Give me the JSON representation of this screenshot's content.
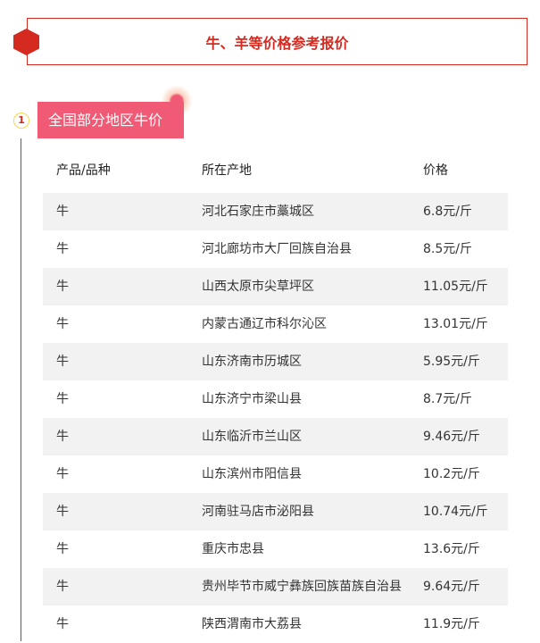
{
  "title": "牛、羊等价格参考报价",
  "section": {
    "number": "1",
    "label": "全国部分地区牛价"
  },
  "table": {
    "headers": [
      "产品/品种",
      "所在产地",
      "价格"
    ],
    "rows": [
      [
        "牛",
        "河北石家庄市藁城区",
        "6.8元/斤"
      ],
      [
        "牛",
        "河北廊坊市大厂回族自治县",
        "8.5元/斤"
      ],
      [
        "牛",
        "山西太原市尖草坪区",
        "11.05元/斤"
      ],
      [
        "牛",
        "内蒙古通辽市科尔沁区",
        "13.01元/斤"
      ],
      [
        "牛",
        "山东济南市历城区",
        "5.95元/斤"
      ],
      [
        "牛",
        "山东济宁市梁山县",
        "8.7元/斤"
      ],
      [
        "牛",
        "山东临沂市兰山区",
        "9.46元/斤"
      ],
      [
        "牛",
        "山东滨州市阳信县",
        "10.2元/斤"
      ],
      [
        "牛",
        "河南驻马店市泌阳县",
        "10.74元/斤"
      ],
      [
        "牛",
        "重庆市忠县",
        "13.6元/斤"
      ],
      [
        "牛",
        "贵州毕节市威宁彝族回族苗族自治县",
        "9.64元/斤"
      ],
      [
        "牛",
        "陕西渭南市大荔县",
        "11.9元/斤"
      ]
    ]
  },
  "colors": {
    "accent": "#d42a20",
    "section": "#f05a74",
    "stripe": "#f2f2f2"
  }
}
